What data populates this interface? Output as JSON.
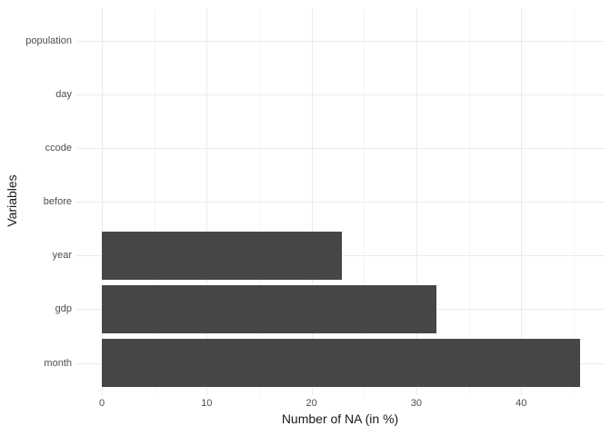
{
  "chart_data": {
    "type": "bar",
    "orientation": "horizontal",
    "title": "",
    "xlabel": "Number of NA (in %)",
    "ylabel": "Variables",
    "categories_top_to_bottom": [
      "population",
      "day",
      "ccode",
      "before",
      "year",
      "gdp",
      "month"
    ],
    "values": [
      0,
      0,
      0,
      0,
      22.9,
      31.9,
      45.6
    ],
    "x_ticks_major": [
      0,
      10,
      20,
      30,
      40
    ],
    "x_gridlines_minor": [
      5,
      15,
      25,
      35,
      45
    ],
    "xlim": [
      -2.43,
      47.96
    ],
    "bar_rel_width": 0.9,
    "y_expand": 0.6,
    "grid": true,
    "legend": false
  },
  "colors": {
    "bar_fill": "#464646",
    "grid_major": "#ebebeb",
    "grid_minor": "#f4f4f4",
    "tick_label": "#4d4d4d",
    "axis_title": "#1a1a1a",
    "background": "#ffffff"
  }
}
